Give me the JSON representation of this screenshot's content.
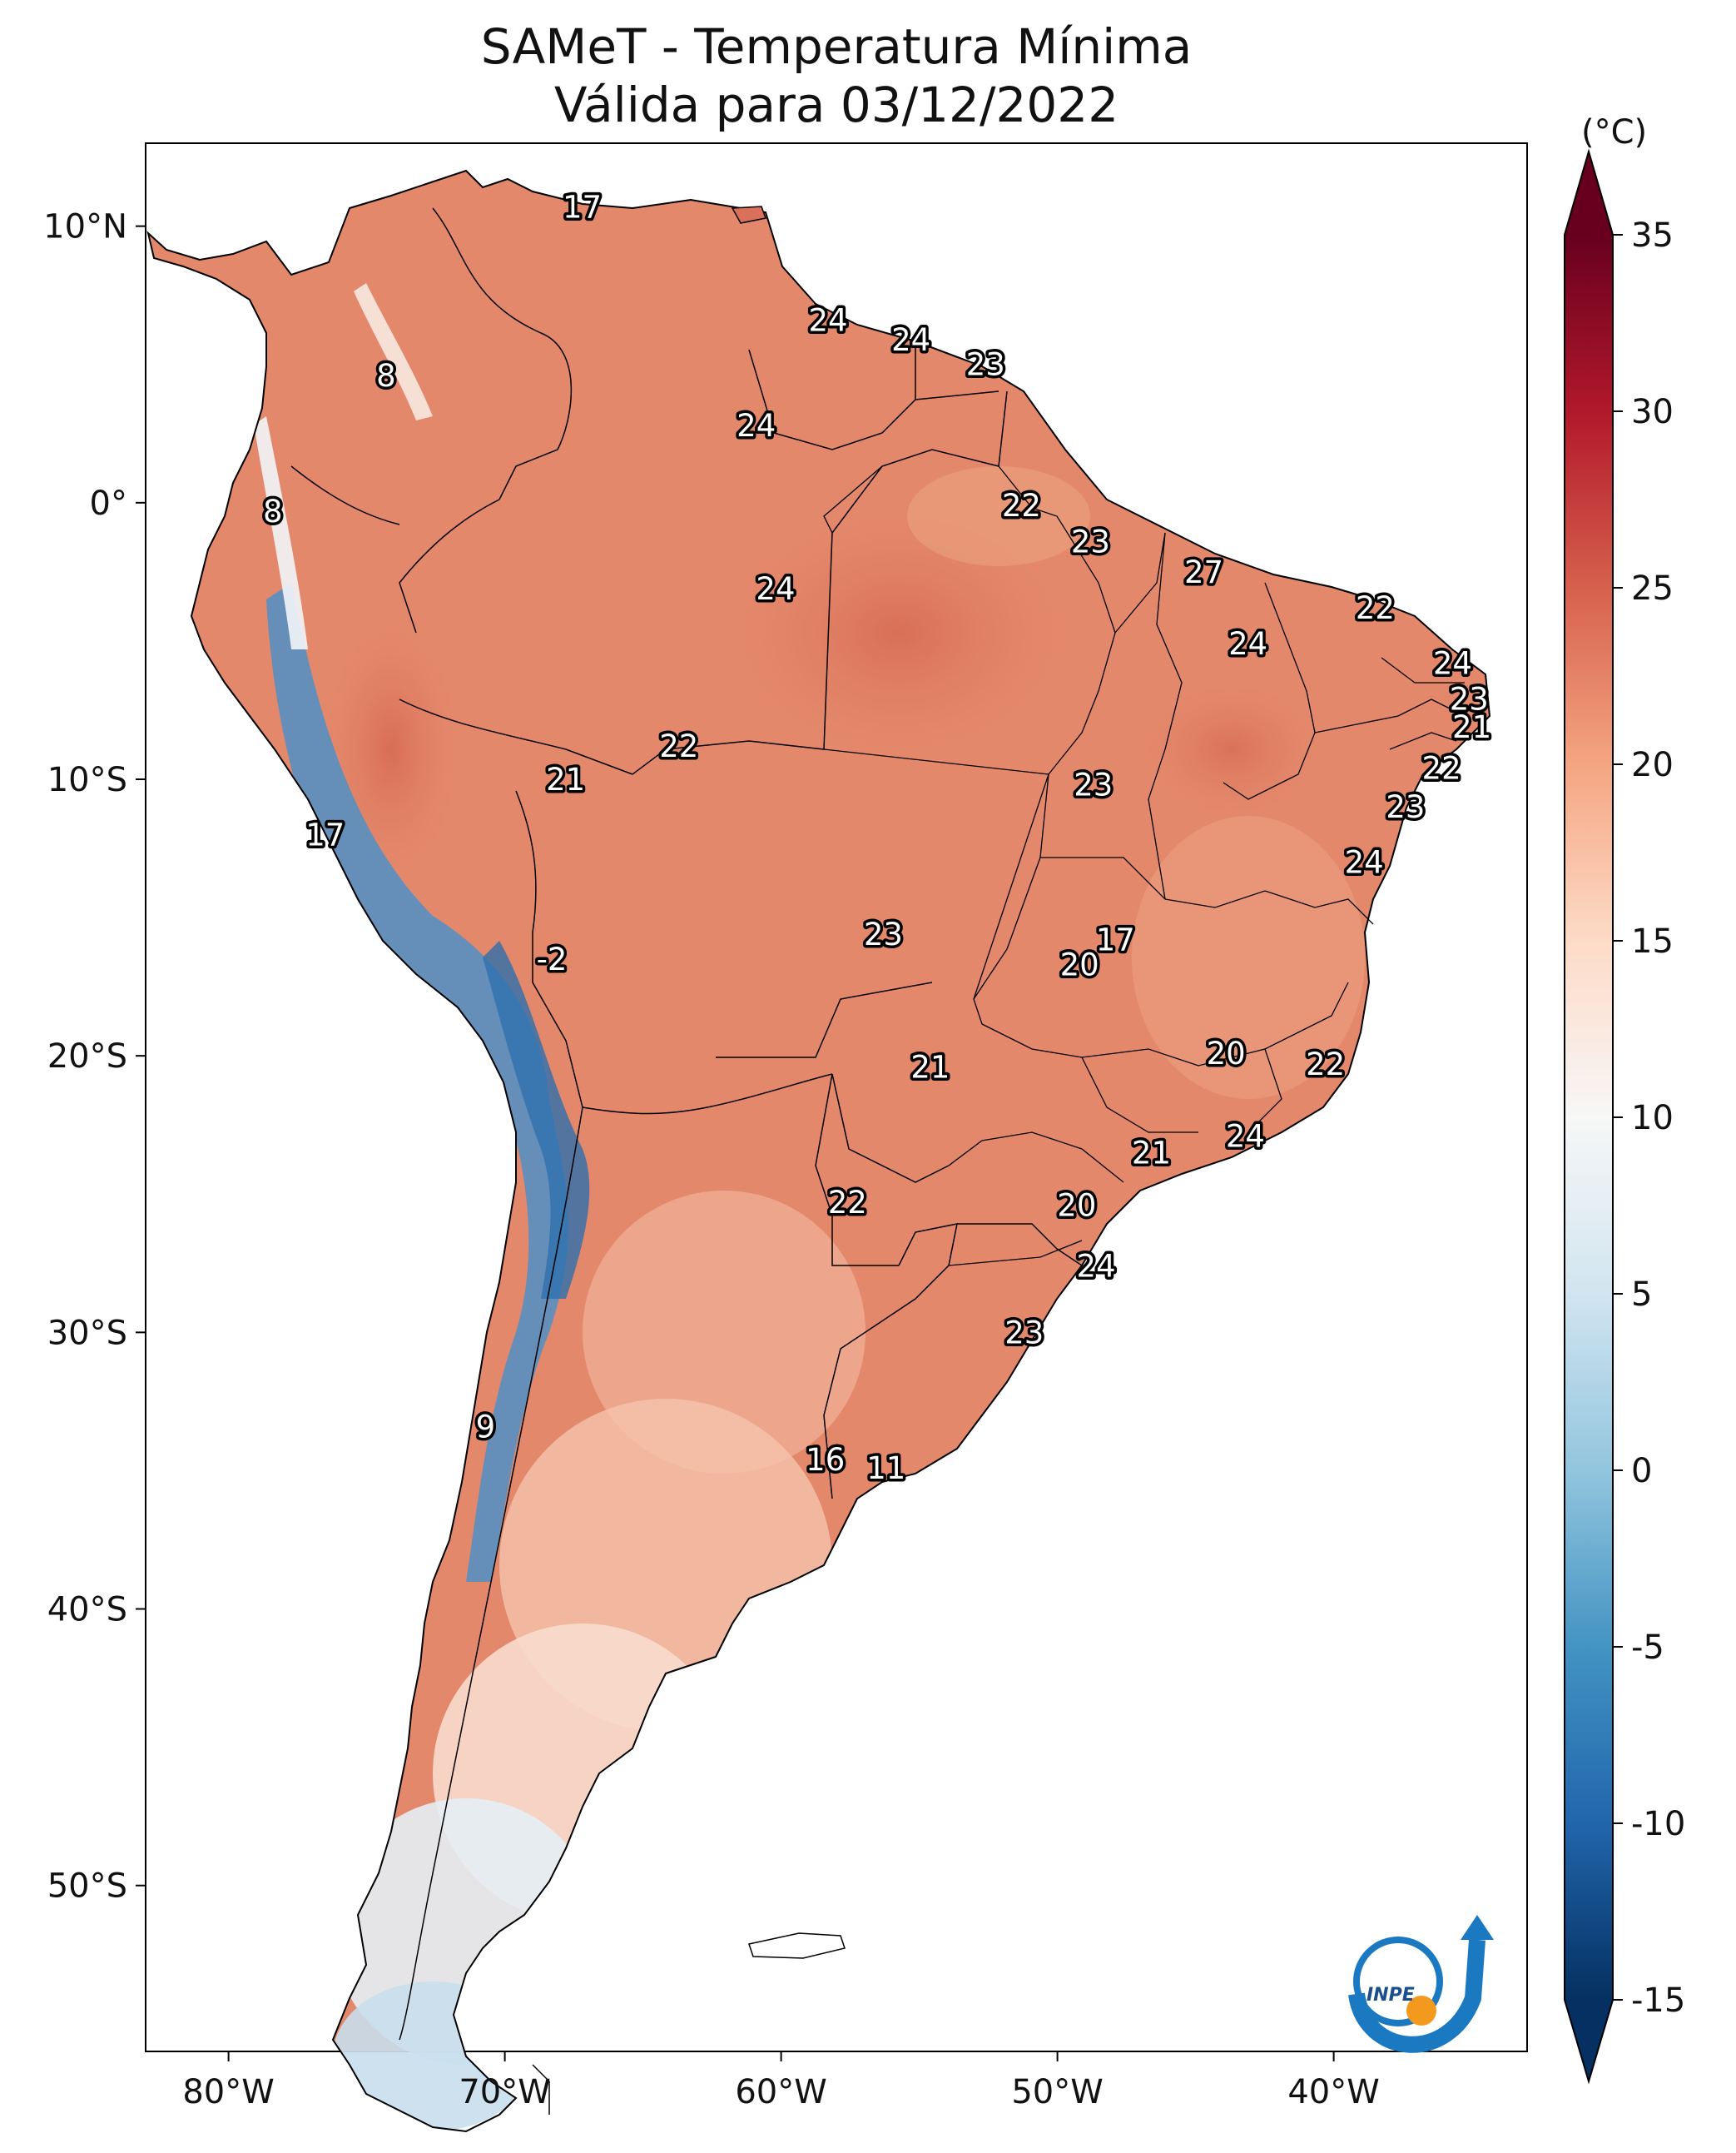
{
  "title": "SAMeT - Temperatura Mínima",
  "subtitle": "Válida para 03/12/2022",
  "colorbar": {
    "unit": "(°C)",
    "ticks": [
      "35",
      "30",
      "25",
      "20",
      "15",
      "10",
      "5",
      "0",
      "-5",
      "-10",
      "-15"
    ],
    "range": [
      -15,
      35
    ],
    "extend": "both",
    "colormap": [
      "#053061",
      "#2166ac",
      "#4393c3",
      "#92c5de",
      "#d1e5f0",
      "#f7f7f7",
      "#fddbc7",
      "#f4a582",
      "#d6604d",
      "#b2182b",
      "#67001f"
    ]
  },
  "axes": {
    "longitudes": [
      "80°W",
      "70°W",
      "60°W",
      "50°W",
      "40°W"
    ],
    "latitudes": [
      "10°N",
      "0°",
      "10°S",
      "20°S",
      "30°S",
      "40°S",
      "50°S"
    ],
    "lon_range": [
      -83,
      -33
    ],
    "lat_range": [
      -56,
      13
    ]
  },
  "station_labels": [
    {
      "text": "17",
      "lon": -67.2,
      "lat": 10.7
    },
    {
      "text": "24",
      "lon": -58.3,
      "lat": 6.6
    },
    {
      "text": "24",
      "lon": -55.3,
      "lat": 5.9
    },
    {
      "text": "23",
      "lon": -52.6,
      "lat": 5.0
    },
    {
      "text": "8",
      "lon": -74.3,
      "lat": 4.6
    },
    {
      "text": "24",
      "lon": -60.9,
      "lat": 2.8
    },
    {
      "text": "8",
      "lon": -78.4,
      "lat": -0.3
    },
    {
      "text": "22",
      "lon": -51.3,
      "lat": -0.1
    },
    {
      "text": "23",
      "lon": -48.8,
      "lat": -1.4
    },
    {
      "text": "27",
      "lon": -44.7,
      "lat": -2.5
    },
    {
      "text": "24",
      "lon": -60.2,
      "lat": -3.1
    },
    {
      "text": "22",
      "lon": -38.5,
      "lat": -3.8
    },
    {
      "text": "24",
      "lon": -43.1,
      "lat": -5.1
    },
    {
      "text": "24",
      "lon": -35.7,
      "lat": -5.8
    },
    {
      "text": "23",
      "lon": -35.1,
      "lat": -7.1
    },
    {
      "text": "21",
      "lon": -35.0,
      "lat": -8.1
    },
    {
      "text": "22",
      "lon": -63.7,
      "lat": -8.8
    },
    {
      "text": "22",
      "lon": -36.1,
      "lat": -9.6
    },
    {
      "text": "21",
      "lon": -67.8,
      "lat": -10.0
    },
    {
      "text": "23",
      "lon": -48.7,
      "lat": -10.2
    },
    {
      "text": "23",
      "lon": -37.4,
      "lat": -11.0
    },
    {
      "text": "17",
      "lon": -76.5,
      "lat": -12.0
    },
    {
      "text": "24",
      "lon": -38.9,
      "lat": -13.0
    },
    {
      "text": "23",
      "lon": -56.3,
      "lat": -15.6
    },
    {
      "text": "17",
      "lon": -47.9,
      "lat": -15.8
    },
    {
      "text": "20",
      "lon": -49.2,
      "lat": -16.7
    },
    {
      "text": "-2",
      "lon": -68.3,
      "lat": -16.5
    },
    {
      "text": "20",
      "lon": -43.9,
      "lat": -19.9
    },
    {
      "text": "22",
      "lon": -40.3,
      "lat": -20.3
    },
    {
      "text": "21",
      "lon": -54.6,
      "lat": -20.4
    },
    {
      "text": "24",
      "lon": -43.2,
      "lat": -22.9
    },
    {
      "text": "21",
      "lon": -46.6,
      "lat": -23.5
    },
    {
      "text": "22",
      "lon": -57.6,
      "lat": -25.3
    },
    {
      "text": "20",
      "lon": -49.3,
      "lat": -25.4
    },
    {
      "text": "24",
      "lon": -48.6,
      "lat": -27.6
    },
    {
      "text": "23",
      "lon": -51.2,
      "lat": -30.0
    },
    {
      "text": "9",
      "lon": -70.7,
      "lat": -33.4
    },
    {
      "text": "16",
      "lon": -58.4,
      "lat": -34.6
    },
    {
      "text": "11",
      "lon": -56.2,
      "lat": -34.9
    }
  ],
  "logo": {
    "text": "INPE"
  }
}
